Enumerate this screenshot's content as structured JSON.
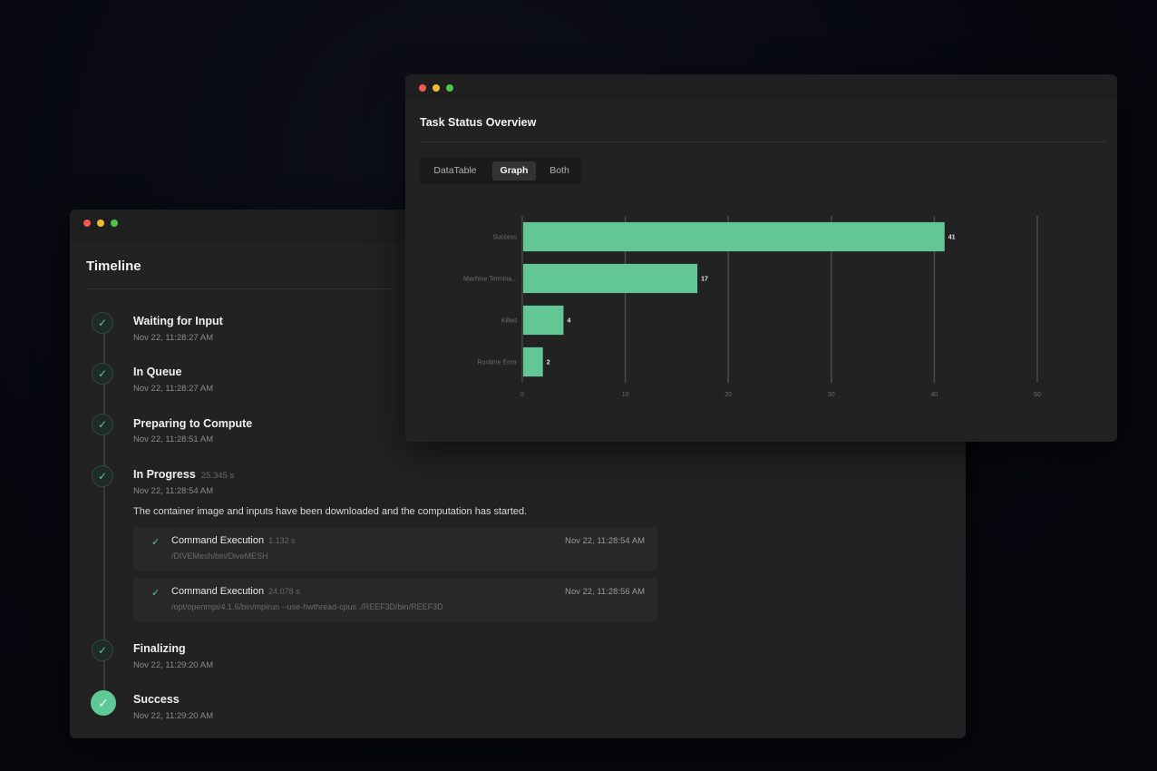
{
  "timeline": {
    "title": "Timeline",
    "steps": [
      {
        "title": "Waiting for Input",
        "time": "Nov 22, 11:28:27 AM",
        "duration": ""
      },
      {
        "title": "In Queue",
        "time": "Nov 22, 11:28:27 AM",
        "duration": ""
      },
      {
        "title": "Preparing to Compute",
        "time": "Nov 22, 11:28:51 AM",
        "duration": ""
      },
      {
        "title": "In Progress",
        "time": "Nov 22, 11:28:54 AM",
        "duration": "25.345 s"
      },
      {
        "title": "Finalizing",
        "time": "Nov 22, 11:29:20 AM",
        "duration": ""
      },
      {
        "title": "Success",
        "time": "Nov 22, 11:29:20 AM",
        "duration": ""
      }
    ],
    "in_progress_description": "The container image and inputs have been downloaded and the computation has started.",
    "commands": [
      {
        "name": "Command Execution",
        "duration": "1.132 s",
        "path": "/DIVEMesh/bin/DiveMESH",
        "time": "Nov 22, 11:28:54 AM"
      },
      {
        "name": "Command Execution",
        "duration": "24.078 s",
        "path": "/opt/openmpi/4.1.6/bin/mpirun --use-hwthread-cpus ./REEF3D/bin/REEF3D",
        "time": "Nov 22, 11:28:56 AM"
      }
    ]
  },
  "status": {
    "title": "Task Status Overview",
    "tabs": [
      {
        "label": "DataTable",
        "active": false
      },
      {
        "label": "Graph",
        "active": true
      },
      {
        "label": "Both",
        "active": false
      }
    ]
  },
  "chart_data": {
    "type": "bar",
    "orientation": "horizontal",
    "categories": [
      "Success",
      "Machine Termina...",
      "Killed",
      "Runtime Error"
    ],
    "values": [
      41,
      17,
      4,
      2
    ],
    "xlim": [
      0,
      50
    ],
    "xticks": [
      0,
      10,
      20,
      30,
      40,
      50
    ],
    "grid": true,
    "bar_color": "#63c795",
    "title": "",
    "xlabel": "",
    "ylabel": ""
  },
  "colors": {
    "accent": "#5ec896",
    "window_bg": "#222222",
    "dot_red": "#ee5a52",
    "dot_yellow": "#f2b931",
    "dot_green": "#4cc54a"
  }
}
